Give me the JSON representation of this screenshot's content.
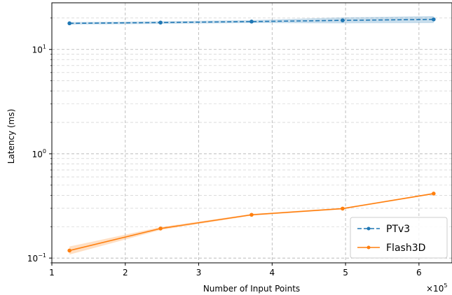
{
  "chart_data": {
    "type": "line",
    "title": "",
    "xlabel": "Number of Input Points",
    "ylabel": "Latency (ms)",
    "x_offset_text": "×10",
    "x_offset_exponent": "5",
    "x_scale_factor": 100000,
    "xlim": [
      1,
      6.45
    ],
    "ylim": [
      0.09,
      28
    ],
    "y_scale": "log",
    "grid": true,
    "grid_style": "dashed",
    "legend_position": "lower-right",
    "x_ticks": [
      {
        "value": 1,
        "label": "1"
      },
      {
        "value": 2,
        "label": "2"
      },
      {
        "value": 3,
        "label": "3"
      },
      {
        "value": 4,
        "label": "4"
      },
      {
        "value": 5,
        "label": "5"
      },
      {
        "value": 6,
        "label": "6"
      }
    ],
    "y_ticks": [
      {
        "value": 0.1,
        "base": "10",
        "exp": "−1"
      },
      {
        "value": 1,
        "base": "10",
        "exp": "0"
      },
      {
        "value": 10,
        "base": "10",
        "exp": "1"
      }
    ],
    "series": [
      {
        "name": "PTv3",
        "color": "#1f77b4",
        "line_style": "dashed",
        "marker": "dot",
        "x": [
          1.24,
          2.48,
          3.72,
          4.96,
          6.2
        ],
        "y": [
          17.8,
          18.1,
          18.5,
          19.0,
          19.4
        ],
        "y_low": [
          17.3,
          17.6,
          17.9,
          17.8,
          17.9
        ],
        "y_high": [
          18.3,
          18.6,
          19.1,
          20.3,
          20.9
        ]
      },
      {
        "name": "Flash3D",
        "color": "#ff7f0e",
        "line_style": "solid",
        "marker": "dot",
        "x": [
          1.24,
          2.48,
          3.72,
          4.96,
          6.2
        ],
        "y": [
          0.118,
          0.192,
          0.26,
          0.298,
          0.415
        ],
        "y_low": [
          0.108,
          0.186,
          0.255,
          0.293,
          0.408
        ],
        "y_high": [
          0.129,
          0.198,
          0.265,
          0.303,
          0.422
        ]
      }
    ]
  }
}
